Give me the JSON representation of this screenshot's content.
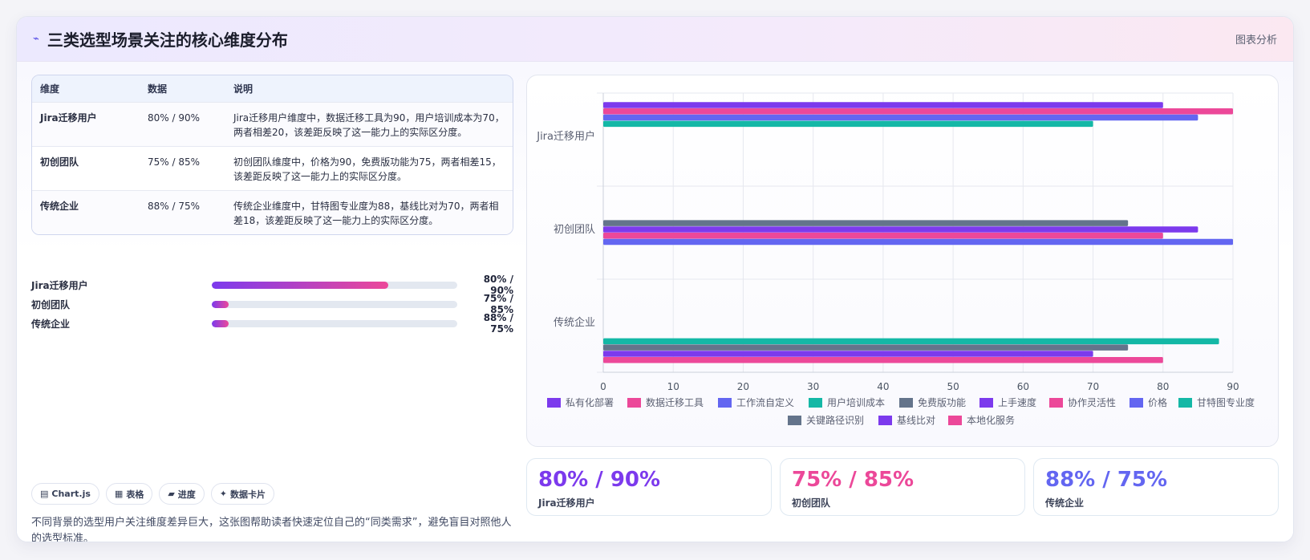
{
  "header": {
    "icon": "lightning-icon",
    "title": "三类选型场景关注的核心维度分布",
    "tag": "图表分析"
  },
  "table": {
    "columns": [
      "维度",
      "数据",
      "说明"
    ],
    "rows": [
      {
        "dim": "Jira迁移用户",
        "data": "80% / 90%",
        "desc": "Jira迁移用户维度中，数据迁移工具为90，用户培训成本为70，两者相差20，该差距反映了这一能力上的实际区分度。"
      },
      {
        "dim": "初创团队",
        "data": "75% / 85%",
        "desc": "初创团队维度中，价格为90，免费版功能为75，两者相差15，该差距反映了这一能力上的实际区分度。"
      },
      {
        "dim": "传统企业",
        "data": "88% / 75%",
        "desc": "传统企业维度中，甘特图专业度为88，基线比对为70，两者相差18，该差距反映了这一能力上的实际区分度。"
      }
    ]
  },
  "progress": [
    {
      "label": "Jira迁移用户",
      "value": "80% / 90%",
      "level": 0.72
    },
    {
      "label": "初创团队",
      "value": "75% / 85%",
      "level": 0.07
    },
    {
      "label": "传统企业",
      "value": "88% / 75%",
      "level": 0.07
    }
  ],
  "chips": [
    {
      "icon": "chart-icon",
      "label": "Chart.js"
    },
    {
      "icon": "table-icon",
      "label": "表格"
    },
    {
      "icon": "progress-icon",
      "label": "进度"
    },
    {
      "icon": "card-icon",
      "label": "数据卡片"
    }
  ],
  "note": "不同背景的选型用户关注维度差异巨大，这张图帮助读者快速定位自己的“同类需求”，避免盲目对照他人的选型标准。",
  "stats": [
    {
      "value": "80% / 90%",
      "label": "Jira迁移用户",
      "color": "#7c3aed"
    },
    {
      "value": "75% / 85%",
      "label": "初创团队",
      "color": "#ec4899"
    },
    {
      "value": "88% / 75%",
      "label": "传统企业",
      "color": "#6366f1"
    }
  ],
  "chart_data": {
    "type": "bar",
    "orientation": "horizontal",
    "categories": [
      "Jira迁移用户",
      "初创团队",
      "传统企业"
    ],
    "xlim": [
      0,
      90
    ],
    "xticks": [
      0,
      10,
      20,
      30,
      40,
      50,
      60,
      70,
      80,
      90
    ],
    "grid": true,
    "legend_position": "bottom",
    "series": [
      {
        "name": "私有化部署",
        "color": "#7c3aed",
        "values": [
          80,
          null,
          null
        ]
      },
      {
        "name": "数据迁移工具",
        "color": "#ec4899",
        "values": [
          90,
          null,
          null
        ]
      },
      {
        "name": "工作流自定义",
        "color": "#6366f1",
        "values": [
          85,
          null,
          null
        ]
      },
      {
        "name": "用户培训成本",
        "color": "#14b8a6",
        "values": [
          70,
          null,
          null
        ]
      },
      {
        "name": "免费版功能",
        "color": "#64748b",
        "values": [
          null,
          75,
          null
        ]
      },
      {
        "name": "上手速度",
        "color": "#7c3aed",
        "values": [
          null,
          85,
          null
        ]
      },
      {
        "name": "协作灵活性",
        "color": "#ec4899",
        "values": [
          null,
          80,
          null
        ]
      },
      {
        "name": "价格",
        "color": "#6366f1",
        "values": [
          null,
          90,
          null
        ]
      },
      {
        "name": "甘特图专业度",
        "color": "#14b8a6",
        "values": [
          null,
          null,
          88
        ]
      },
      {
        "name": "关键路径识别",
        "color": "#64748b",
        "values": [
          null,
          null,
          75
        ]
      },
      {
        "name": "基线比对",
        "color": "#7c3aed",
        "values": [
          null,
          null,
          70
        ]
      },
      {
        "name": "本地化服务",
        "color": "#ec4899",
        "values": [
          null,
          null,
          80
        ]
      }
    ]
  }
}
